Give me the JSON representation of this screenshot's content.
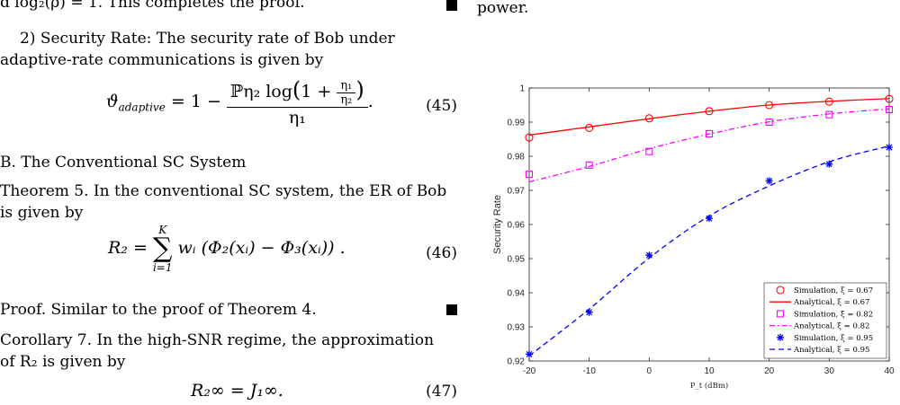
{
  "left": {
    "proof_end": "d log₂(ρ) = 1. This completes the proof.",
    "security_rate_heading": "2) Security Rate: The security rate of Bob under",
    "security_rate_line2": "adaptive-rate communications is given by",
    "eq45": {
      "lhs": "ϑ",
      "lhs_sub": "adaptive",
      "numerator": "ℙη₂ log",
      "inner_num": "η₁",
      "inner_den": "η₂",
      "denominator": "η₁",
      "number": "(45)"
    },
    "section_b": "B. The Conventional SC System",
    "theorem5_line1": "Theorem 5. In the conventional SC system, the ER of Bob",
    "theorem5_line2": "is given by",
    "eq46": {
      "lhs": "R₂ =",
      "sum_top": "K",
      "sum_bottom": "i=1",
      "body": "wᵢ (Φ₂(xᵢ) − Φ₃(xᵢ)) .",
      "number": "(46)"
    },
    "proof_similar": "Proof. Similar to the proof of Theorem 4.",
    "corollary7_line1": "Corollary 7. In the high-SNR regime, the approximation",
    "corollary7_line2": "of R₂ is given by",
    "eq47": {
      "body": "R₂∞ = J₁∞.",
      "number": "(47)"
    }
  },
  "right": {
    "top_text": "power."
  },
  "chart_data": {
    "type": "line",
    "xlabel": "P_t (dBm)",
    "ylabel": "Security Rate",
    "xlim": [
      -20,
      40
    ],
    "ylim": [
      0.92,
      1
    ],
    "xticks": [
      -20,
      -10,
      0,
      10,
      20,
      30,
      40
    ],
    "xtick_labels": [
      "-20",
      "-10",
      "0",
      "10",
      "20",
      "30",
      "40"
    ],
    "yticks": [
      0.92,
      0.93,
      0.94,
      0.95,
      0.96,
      0.97,
      0.98,
      0.99,
      1
    ],
    "ytick_labels": [
      "0.92",
      "0.93",
      "0.94",
      "0.95",
      "0.96",
      "0.97",
      "0.98",
      "0.99",
      "1"
    ],
    "legend_position": "bottom-right",
    "grid": false,
    "x": [
      -20,
      -10,
      0,
      10,
      20,
      30,
      40
    ],
    "series": [
      {
        "name": "Simulation, ξ = 0.67",
        "kind": "marker",
        "marker": "circle",
        "color": "#ff0000",
        "values": [
          0.9855,
          0.9883,
          0.9911,
          0.9932,
          0.995,
          0.996,
          0.9968
        ]
      },
      {
        "name": "Analytical, ξ = 0.67",
        "kind": "line",
        "dash": "solid",
        "color": "#ff0000",
        "values": [
          0.9862,
          0.9886,
          0.991,
          0.9932,
          0.995,
          0.9961,
          0.9969
        ]
      },
      {
        "name": "Simulation, ξ = 0.82",
        "kind": "marker",
        "marker": "square",
        "color": "#ff00ff",
        "values": [
          0.9747,
          0.9774,
          0.9814,
          0.9866,
          0.99,
          0.9922,
          0.9937
        ]
      },
      {
        "name": "Analytical, ξ = 0.82",
        "kind": "line",
        "dash": "dashdot",
        "color": "#ff00ff",
        "values": [
          0.9725,
          0.977,
          0.9822,
          0.9865,
          0.9901,
          0.9924,
          0.9939
        ]
      },
      {
        "name": "Simulation, ξ = 0.95",
        "kind": "marker",
        "marker": "star",
        "color": "#0000ff",
        "values": [
          0.922,
          0.9343,
          0.951,
          0.9618,
          0.9728,
          0.9777,
          0.9826
        ]
      },
      {
        "name": "Analytical, ξ = 0.95",
        "kind": "line",
        "dash": "dashed",
        "color": "#0000ff",
        "values": [
          0.9215,
          0.9352,
          0.9502,
          0.9625,
          0.9713,
          0.9784,
          0.983
        ]
      }
    ]
  }
}
